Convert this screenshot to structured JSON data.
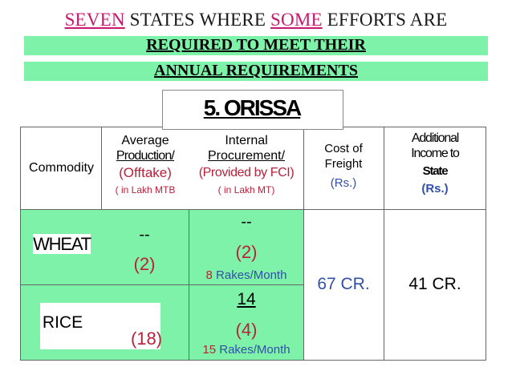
{
  "title": {
    "seven": "SEVEN",
    "states_where": " STATES WHERE ",
    "some": "SOME",
    "efforts_are": " EFFORTS ARE",
    "line2": "REQUIRED TO MEET THEIR",
    "line3": "ANNUAL REQUIREMENTS"
  },
  "state_heading": "5. ORISSA",
  "headers": {
    "commodity": "Commodity",
    "avg_production": {
      "l1": "Average",
      "l2": "Production/",
      "l3": "(Offtake)",
      "l4": "( in  Lakh MTB"
    },
    "internal_procurement": {
      "l1": "Internal",
      "l2": "Procurement/",
      "l3": "(Provided by FCI)",
      "l4": "( in  Lakh MT)"
    },
    "cost_freight": {
      "l1": "Cost of",
      "l2": "Freight",
      "l3": "(Rs.)"
    },
    "additional_income": {
      "l1": "Additional",
      "l2": "Income to",
      "l3": "State",
      "l4": "(Rs.)"
    }
  },
  "rows": {
    "wheat": {
      "name": "WHEAT",
      "avg_dash": "--",
      "avg_value": "(2)",
      "proc_dash": "--",
      "proc_value": "(2)",
      "rakes_num": "8",
      "rakes_text": " Rakes/Month"
    },
    "rice": {
      "name": "RICE",
      "avg_value": "(18)",
      "proc_top": "14",
      "proc_value": "(4)",
      "rakes_num": "15",
      "rakes_text": " Rakes/Month"
    }
  },
  "cost_freight_value": "67 CR.",
  "additional_income_value": "41 CR.",
  "colors": {
    "band": "#7ef2a8",
    "magenta": "#c8186e",
    "red": "#b8213a",
    "blue": "#3250a8"
  }
}
